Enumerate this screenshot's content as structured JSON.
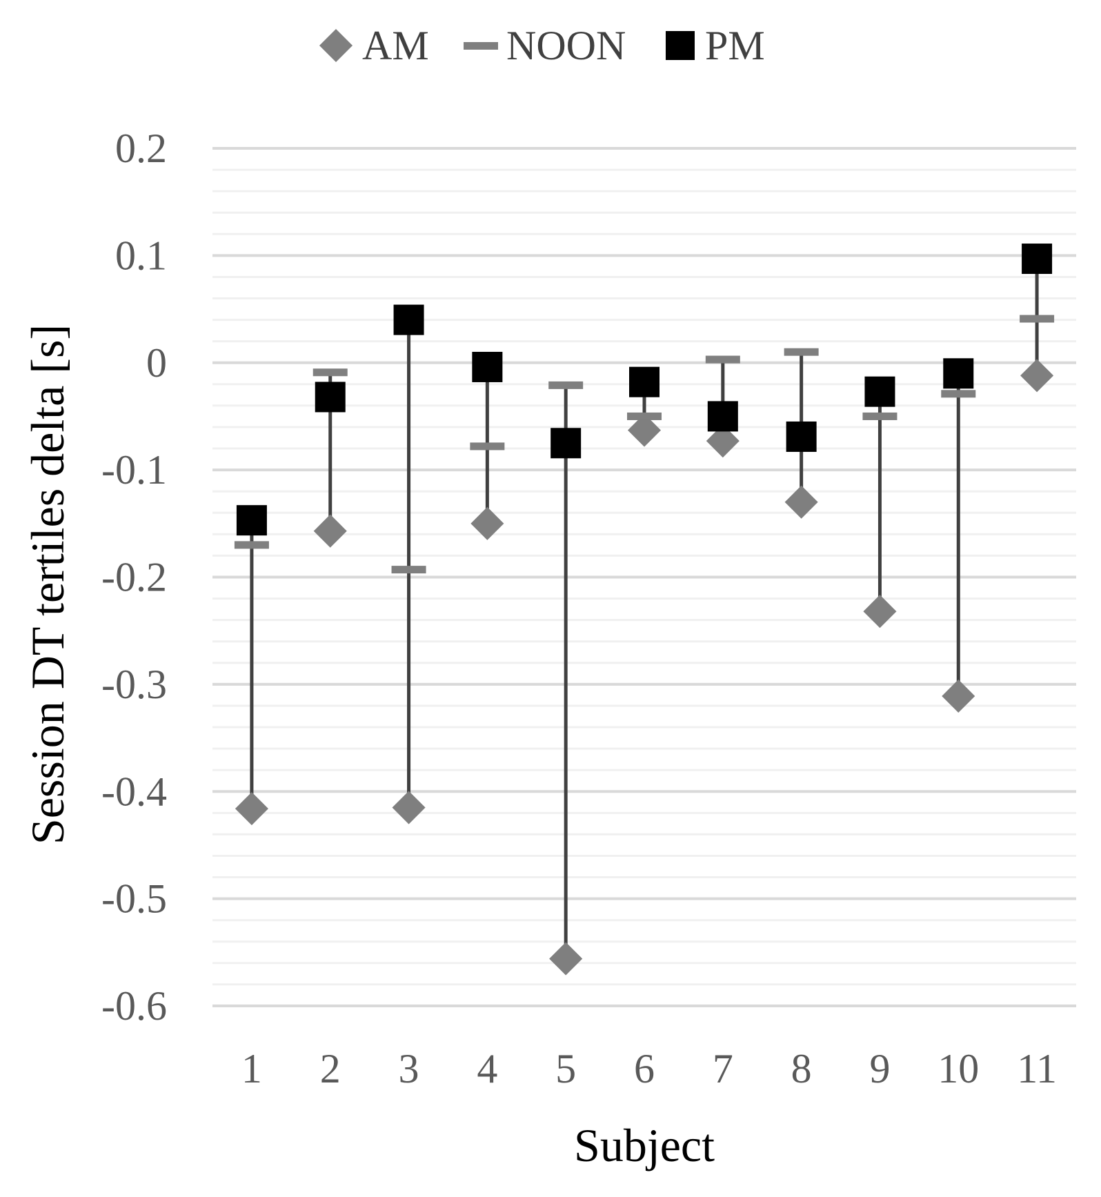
{
  "chart_data": {
    "type": "scatter",
    "title": "",
    "xlabel": "Subject",
    "ylabel": "Session DT tertiles delta [s]",
    "categories": [
      "1",
      "2",
      "3",
      "4",
      "5",
      "6",
      "7",
      "8",
      "9",
      "10",
      "11"
    ],
    "ylim": [
      -0.6,
      0.2
    ],
    "yticks": [
      0.2,
      0.1,
      0,
      -0.1,
      -0.2,
      -0.3,
      -0.4,
      -0.5,
      -0.6
    ],
    "ytick_labels": [
      "0.2",
      "0.1",
      "0",
      "-0.1",
      "-0.2",
      "-0.3",
      "-0.4",
      "-0.5",
      "-0.6"
    ],
    "grid": true,
    "legend_position": "top-center",
    "series": [
      {
        "name": "AM",
        "marker": "diamond",
        "color": "#7f7f7f",
        "values": [
          -0.416,
          -0.157,
          -0.415,
          -0.15,
          -0.556,
          -0.063,
          -0.073,
          -0.13,
          -0.232,
          -0.311,
          -0.012
        ]
      },
      {
        "name": "NOON",
        "marker": "dash",
        "color": "#7f7f7f",
        "values": [
          -0.17,
          -0.009,
          -0.193,
          -0.078,
          -0.021,
          -0.05,
          0.003,
          0.01,
          -0.05,
          -0.029,
          0.041
        ]
      },
      {
        "name": "PM",
        "marker": "square",
        "color": "#000000",
        "values": [
          -0.147,
          -0.032,
          0.04,
          -0.004,
          -0.075,
          -0.018,
          -0.05,
          -0.069,
          -0.027,
          -0.01,
          0.097
        ]
      }
    ],
    "range_line_color": "#404040"
  }
}
